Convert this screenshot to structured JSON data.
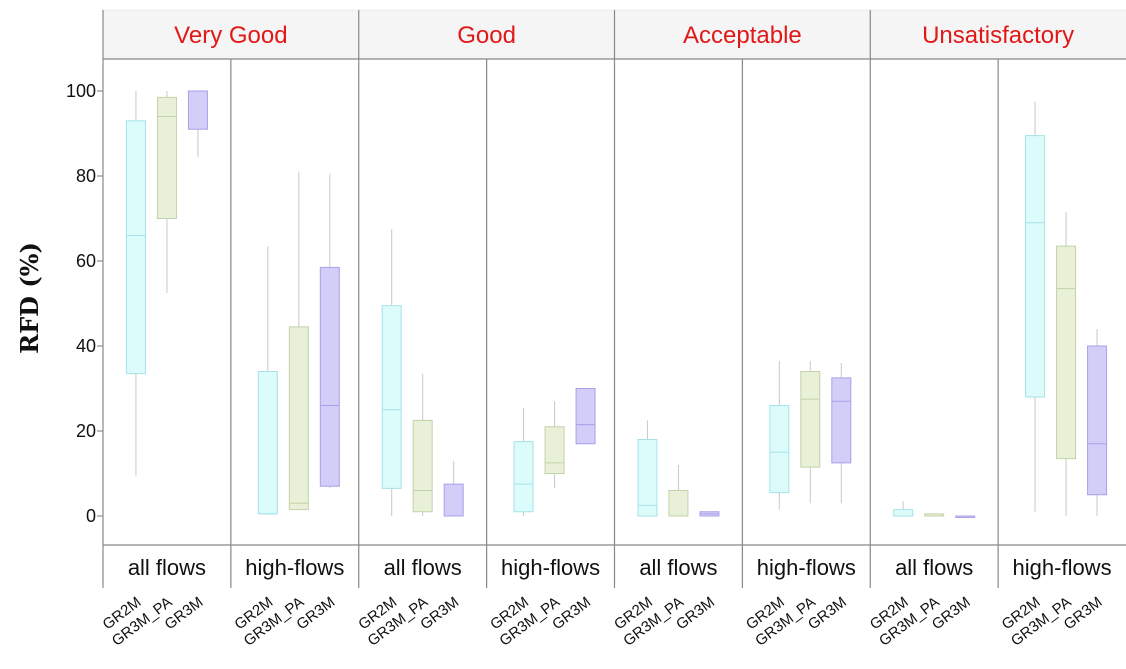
{
  "chart_data": {
    "type": "box",
    "ylabel": "RFD (%)",
    "ylim": [
      -7,
      107
    ],
    "yticks": [
      0,
      20,
      40,
      60,
      80,
      100
    ],
    "grid": false,
    "categories": [
      "Very Good",
      "Good",
      "Acceptable",
      "Unsatisfactory"
    ],
    "flow_groups": [
      "all flows",
      "high-flows"
    ],
    "models": [
      "GR2M",
      "GR3M_PA",
      "GR3M"
    ],
    "colors": {
      "GR2M": {
        "fill": "#dcfbfb",
        "stroke": "#a6e3e6"
      },
      "GR3M_PA": {
        "fill": "#e8f0d8",
        "stroke": "#c3d2aa"
      },
      "GR3M": {
        "fill": "#d2cef7",
        "stroke": "#a8a1ea"
      }
    },
    "panels": [
      {
        "category": "Very Good",
        "flow": "all flows",
        "boxes": [
          {
            "model": "GR2M",
            "min": 9.5,
            "q1": 33.5,
            "median": 66,
            "q3": 93,
            "max": 100
          },
          {
            "model": "GR3M_PA",
            "min": 52.5,
            "q1": 70,
            "median": 94,
            "q3": 98.5,
            "max": 100
          },
          {
            "model": "GR3M",
            "min": 84.5,
            "q1": 91,
            "median": 100,
            "q3": 100,
            "max": 100
          }
        ]
      },
      {
        "category": "Very Good",
        "flow": "high-flows",
        "boxes": [
          {
            "model": "GR2M",
            "min": 0.5,
            "q1": 0.5,
            "median": 0.5,
            "q3": 34,
            "max": 63.5
          },
          {
            "model": "GR3M_PA",
            "min": 1.5,
            "q1": 1.5,
            "median": 3,
            "q3": 44.5,
            "max": 81
          },
          {
            "model": "GR3M",
            "min": 6.5,
            "q1": 7,
            "median": 26,
            "q3": 58.5,
            "max": 80.5
          }
        ]
      },
      {
        "category": "Good",
        "flow": "all flows",
        "boxes": [
          {
            "model": "GR2M",
            "min": 0,
            "q1": 6.5,
            "median": 25,
            "q3": 49.5,
            "max": 67.5
          },
          {
            "model": "GR3M_PA",
            "min": 0,
            "q1": 1,
            "median": 6,
            "q3": 22.5,
            "max": 33.5
          },
          {
            "model": "GR3M",
            "min": 0,
            "q1": 0,
            "median": 0,
            "q3": 7.5,
            "max": 13
          }
        ]
      },
      {
        "category": "Good",
        "flow": "high-flows",
        "boxes": [
          {
            "model": "GR2M",
            "min": 0,
            "q1": 1,
            "median": 7.5,
            "q3": 17.5,
            "max": 25.5
          },
          {
            "model": "GR3M_PA",
            "min": 6.5,
            "q1": 10,
            "median": 12.5,
            "q3": 21,
            "max": 27
          },
          {
            "model": "GR3M",
            "min": 17,
            "q1": 17,
            "median": 21.5,
            "q3": 30,
            "max": 30
          }
        ]
      },
      {
        "category": "Acceptable",
        "flow": "all flows",
        "boxes": [
          {
            "model": "GR2M",
            "min": 0,
            "q1": 0,
            "median": 2.5,
            "q3": 18,
            "max": 22.5
          },
          {
            "model": "GR3M_PA",
            "min": 0,
            "q1": 0,
            "median": 0,
            "q3": 6,
            "max": 12
          },
          {
            "model": "GR3M",
            "min": 0,
            "q1": 0,
            "median": 0.5,
            "q3": 1,
            "max": 1
          }
        ]
      },
      {
        "category": "Acceptable",
        "flow": "high-flows",
        "boxes": [
          {
            "model": "GR2M",
            "min": 1.5,
            "q1": 5.5,
            "median": 15,
            "q3": 26,
            "max": 36.5
          },
          {
            "model": "GR3M_PA",
            "min": 3,
            "q1": 11.5,
            "median": 27.5,
            "q3": 34,
            "max": 36.5
          },
          {
            "model": "GR3M",
            "min": 3,
            "q1": 12.5,
            "median": 27,
            "q3": 32.5,
            "max": 36
          }
        ]
      },
      {
        "category": "Unsatisfactory",
        "flow": "all flows",
        "boxes": [
          {
            "model": "GR2M",
            "min": 0,
            "q1": 0,
            "median": 0,
            "q3": 1.5,
            "max": 3.5
          },
          {
            "model": "GR3M_PA",
            "min": 0,
            "q1": 0,
            "median": 0,
            "q3": 0.5,
            "max": 0.5
          },
          {
            "model": "GR3M",
            "min": 0,
            "q1": 0,
            "median": 0,
            "q3": 0,
            "max": 0
          }
        ]
      },
      {
        "category": "Unsatisfactory",
        "flow": "high-flows",
        "boxes": [
          {
            "model": "GR2M",
            "min": 1,
            "q1": 28,
            "median": 69,
            "q3": 89.5,
            "max": 97.5
          },
          {
            "model": "GR3M_PA",
            "min": 0,
            "q1": 13.5,
            "median": 53.5,
            "q3": 63.5,
            "max": 71.5
          },
          {
            "model": "GR3M",
            "min": 0,
            "q1": 5,
            "median": 17,
            "q3": 40,
            "max": 44
          }
        ]
      }
    ]
  }
}
